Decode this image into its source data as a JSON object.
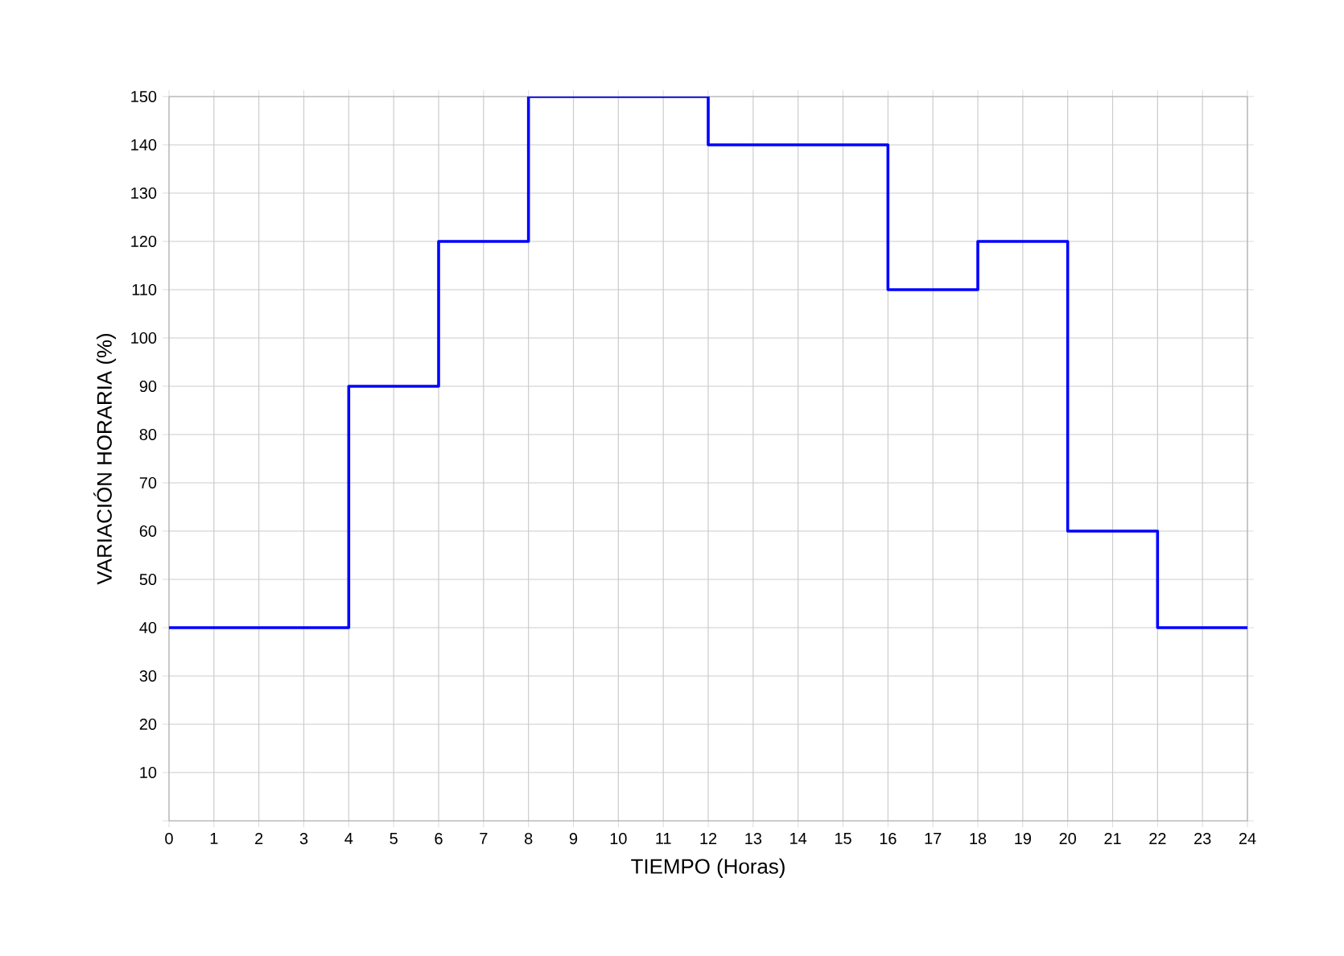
{
  "chart_data": {
    "type": "step",
    "xlabel": "TIEMPO   (Horas)",
    "ylabel": "VARIACIÓN  HORARIA (%)",
    "x": [
      0,
      4,
      6,
      8,
      12,
      16,
      18,
      20,
      22,
      24
    ],
    "series": [
      {
        "color": "#0000ff",
        "values": [
          40,
          90,
          120,
          150,
          140,
          110,
          120,
          60,
          40,
          40
        ]
      }
    ],
    "xlim": [
      0,
      24
    ],
    "ylim": [
      0,
      150
    ],
    "xticks": [
      0,
      1,
      2,
      3,
      4,
      5,
      6,
      7,
      8,
      9,
      10,
      11,
      12,
      13,
      14,
      15,
      16,
      17,
      18,
      19,
      20,
      21,
      22,
      23,
      24
    ],
    "yticks": [
      {
        "value": 0,
        "label": null
      },
      10,
      20,
      30,
      40,
      50,
      60,
      70,
      80,
      90,
      100,
      110,
      120,
      130,
      140,
      150
    ],
    "grid": true,
    "legend": false,
    "marker": "none",
    "line_style": "solid"
  }
}
